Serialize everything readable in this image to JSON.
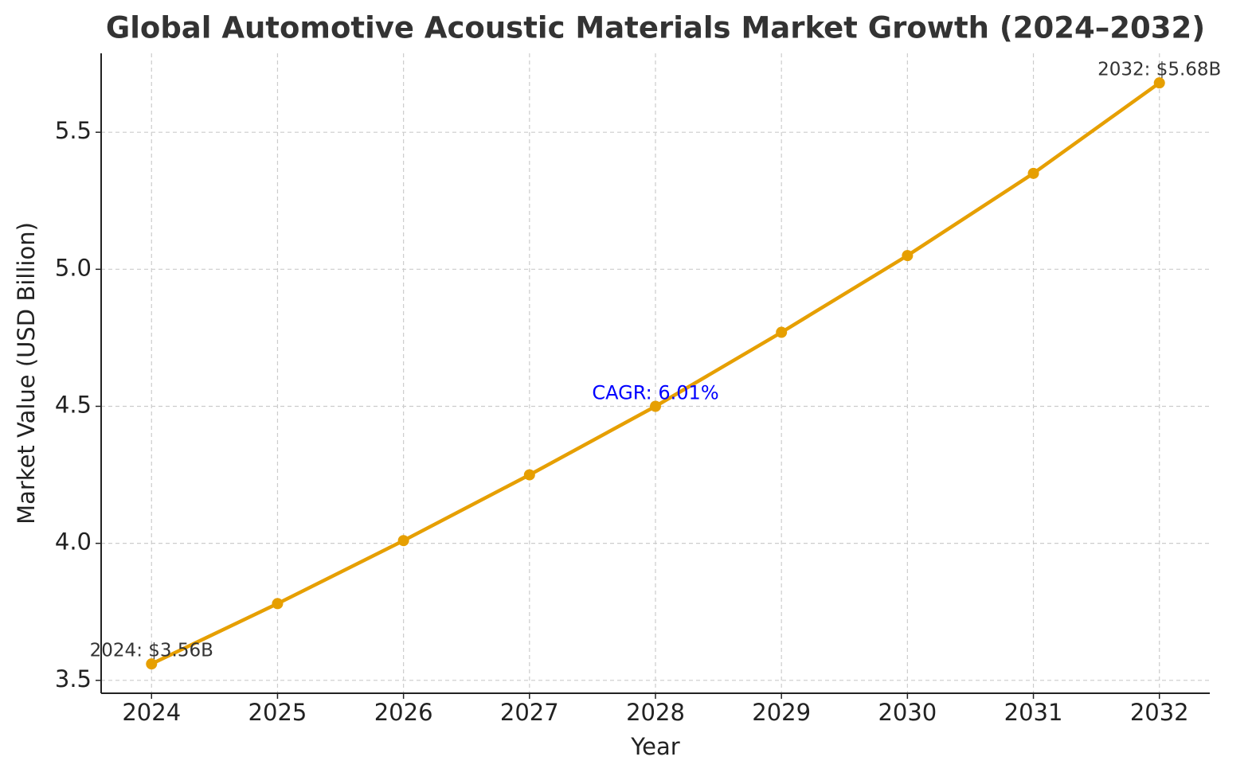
{
  "chart_data": {
    "type": "line",
    "title": "Global Automotive Acoustic Materials Market Growth (2024–2032)",
    "xlabel": "Year",
    "ylabel": "Market Value (USD Billion)",
    "x": [
      2024,
      2025,
      2026,
      2027,
      2028,
      2029,
      2030,
      2031,
      2032
    ],
    "series": [
      {
        "name": "Market Value",
        "color": "#e69f00",
        "values": [
          3.56,
          3.78,
          4.01,
          4.25,
          4.5,
          4.77,
          5.05,
          5.35,
          5.68
        ],
        "value_labels": [
          "2024: $3.56B",
          null,
          null,
          null,
          null,
          null,
          null,
          null,
          "2032: $5.68B"
        ]
      }
    ],
    "annotations": [
      {
        "text": "CAGR: 6.01%",
        "color": "#0000ff"
      }
    ],
    "xlim": [
      2023.6,
      2032.4
    ],
    "xticks": [
      2024,
      2025,
      2026,
      2027,
      2028,
      2029,
      2030,
      2031,
      2032
    ],
    "ylim": [
      3.453,
      5.788
    ],
    "yticks": [
      3.5,
      {
        "value": 4,
        "label": "4.0"
      },
      4.5,
      {
        "value": 5,
        "label": "5.0"
      },
      5.5
    ],
    "grid": true,
    "legend": false
  }
}
